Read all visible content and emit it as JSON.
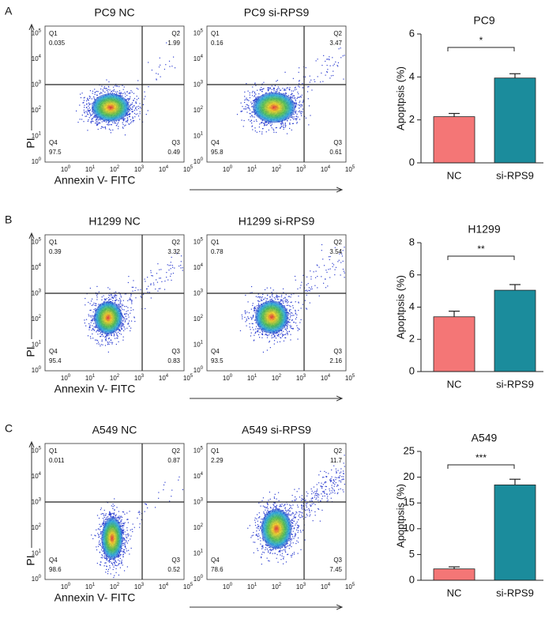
{
  "panel_labels": [
    "A",
    "B",
    "C"
  ],
  "log_ticks": {
    "base": "10",
    "exponents": [
      "0",
      "1",
      "2",
      "3",
      "4",
      "5"
    ]
  },
  "axis_labels": {
    "x": "Annexin V- FITC",
    "y": "PI"
  },
  "quadrant_names": [
    "Q1",
    "Q2",
    "Q3",
    "Q4"
  ],
  "flow_rows": [
    {
      "plots": [
        {
          "title": "PC9 NC",
          "quadrants": [
            0.035,
            1.99,
            0.49,
            97.5
          ]
        },
        {
          "title": "PC9 si-RPS9",
          "quadrants": [
            0.16,
            3.47,
            0.61,
            95.8
          ]
        }
      ]
    },
    {
      "plots": [
        {
          "title": "H1299 NC",
          "quadrants": [
            0.39,
            3.32,
            0.83,
            95.4
          ]
        },
        {
          "title": "H1299 si-RPS9",
          "quadrants": [
            0.78,
            3.54,
            2.16,
            93.5
          ]
        }
      ]
    },
    {
      "plots": [
        {
          "title": "A549 NC",
          "quadrants": [
            0.011,
            0.87,
            0.52,
            98.6
          ]
        },
        {
          "title": "A549 si-RPS9",
          "quadrants": [
            2.29,
            11.7,
            7.45,
            78.6
          ]
        }
      ]
    }
  ],
  "chart_data": [
    {
      "type": "bar",
      "title": "PC9",
      "y_label": "Apoptpsis (%)",
      "categories": [
        "NC",
        "si-RPS9"
      ],
      "values": [
        2.15,
        3.95
      ],
      "errors": [
        0.15,
        0.2
      ],
      "colors": [
        "#f47676",
        "#1b8c9c"
      ],
      "ylim": [
        0,
        6
      ],
      "yticks": [
        0,
        2,
        4,
        6
      ],
      "significance": "*"
    },
    {
      "type": "bar",
      "title": "H1299",
      "y_label": "Apoptpsis (%)",
      "categories": [
        "NC",
        "si-RPS9"
      ],
      "values": [
        3.4,
        5.05
      ],
      "errors": [
        0.35,
        0.35
      ],
      "colors": [
        "#f47676",
        "#1b8c9c"
      ],
      "ylim": [
        0,
        8
      ],
      "yticks": [
        0,
        2,
        4,
        6,
        8
      ],
      "significance": "**"
    },
    {
      "type": "bar",
      "title": "A549",
      "y_label": "Apoptpsis (%)",
      "categories": [
        "NC",
        "si-RPS9"
      ],
      "values": [
        2.2,
        18.5
      ],
      "errors": [
        0.4,
        1.1
      ],
      "colors": [
        "#f47676",
        "#1b8c9c"
      ],
      "ylim": [
        0,
        25
      ],
      "yticks": [
        0,
        5,
        10,
        15,
        20,
        25
      ],
      "significance": "***"
    }
  ]
}
